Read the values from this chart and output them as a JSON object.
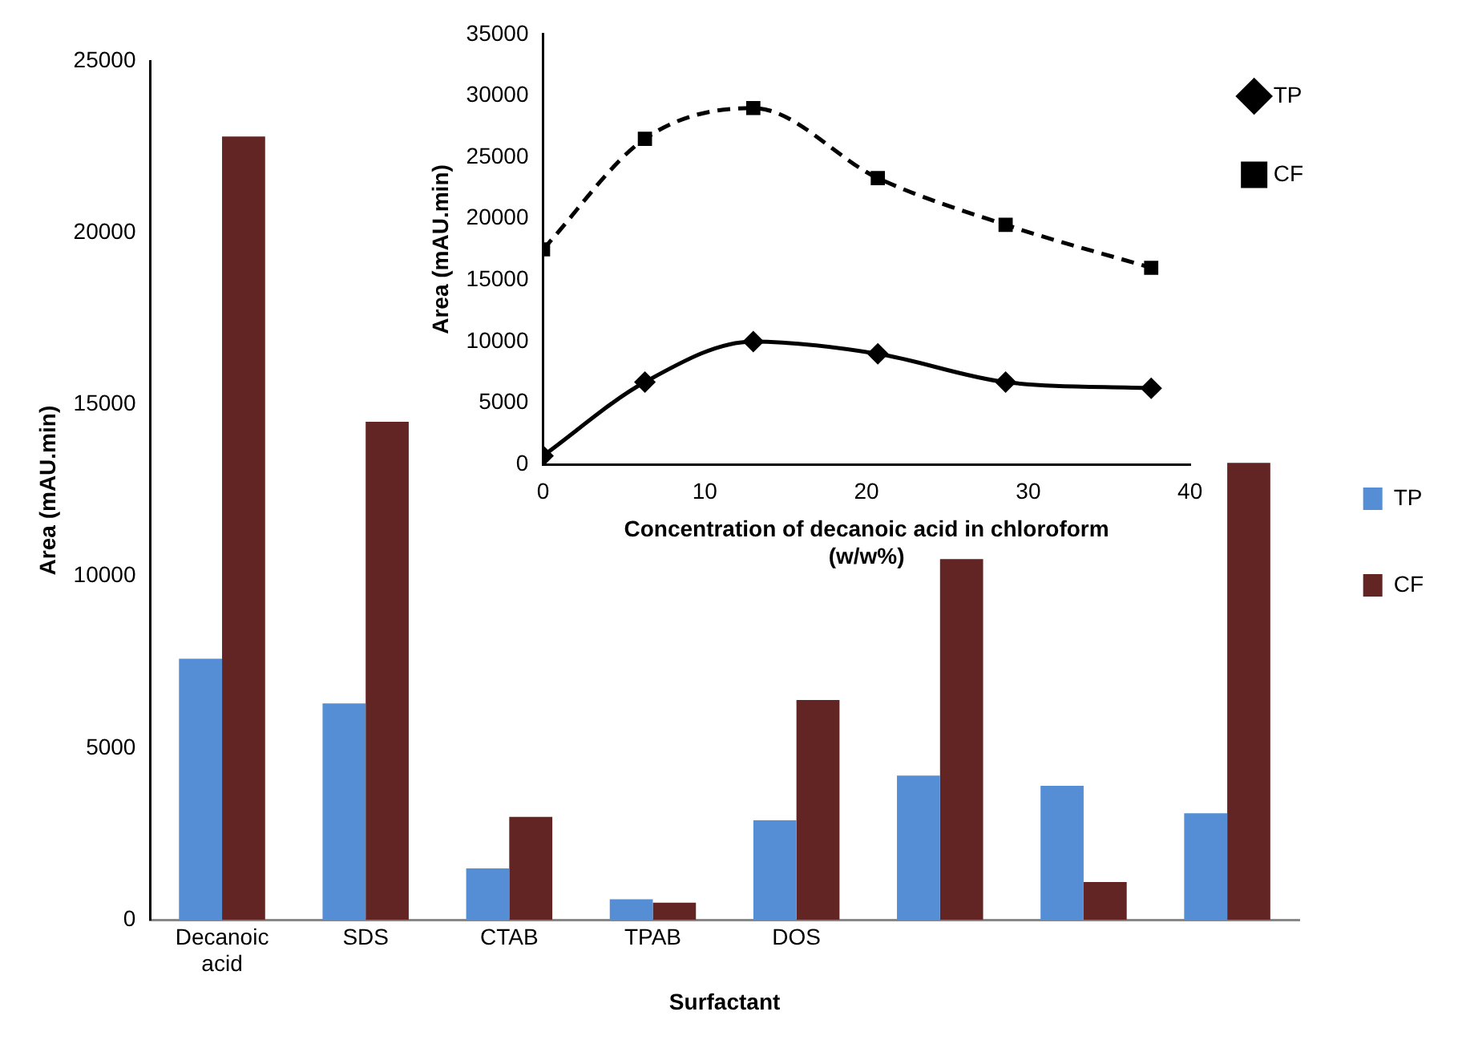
{
  "chart_data": [
    {
      "type": "bar",
      "xlabel": "Surfactant",
      "ylabel": "Area (mAU.min)",
      "categories": [
        "Decanoic acid",
        "SDS",
        "CTAB",
        "TPAB",
        "DOS",
        null,
        null,
        null
      ],
      "series": [
        {
          "name": "TP",
          "color": "#558ed5",
          "values": [
            7600,
            6300,
            1500,
            600,
            2900,
            4200,
            3900,
            3100
          ]
        },
        {
          "name": "CF",
          "color": "#632523",
          "values": [
            22800,
            14500,
            3000,
            500,
            6400,
            10500,
            1100,
            13300
          ]
        }
      ],
      "ylim": [
        0,
        25000
      ],
      "yticks": [
        0,
        5000,
        10000,
        15000,
        20000,
        25000
      ],
      "grid": false,
      "legend": "right"
    },
    {
      "type": "line",
      "xlabel": "Concentration of decanoic acid in chloroform (w/w%)",
      "ylabel": "Area (mAU.min)",
      "x": [
        0,
        6.3,
        13,
        20.7,
        28.6,
        37.6
      ],
      "series": [
        {
          "name": "TP",
          "color": "#000000",
          "marker": "diamond",
          "line_style": "solid",
          "values": [
            700,
            6700,
            10000,
            9000,
            6700,
            6200
          ]
        },
        {
          "name": "CF",
          "color": "#000000",
          "marker": "square",
          "line_style": "dashed",
          "values": [
            17500,
            26500,
            29000,
            23300,
            19500,
            16000
          ]
        }
      ],
      "xlim": [
        0,
        40
      ],
      "xticks": [
        0,
        10,
        20,
        30,
        40
      ],
      "ylim": [
        0,
        35000
      ],
      "yticks": [
        0,
        5000,
        10000,
        15000,
        20000,
        25000,
        30000,
        35000
      ],
      "grid": false,
      "legend": "top right"
    }
  ]
}
